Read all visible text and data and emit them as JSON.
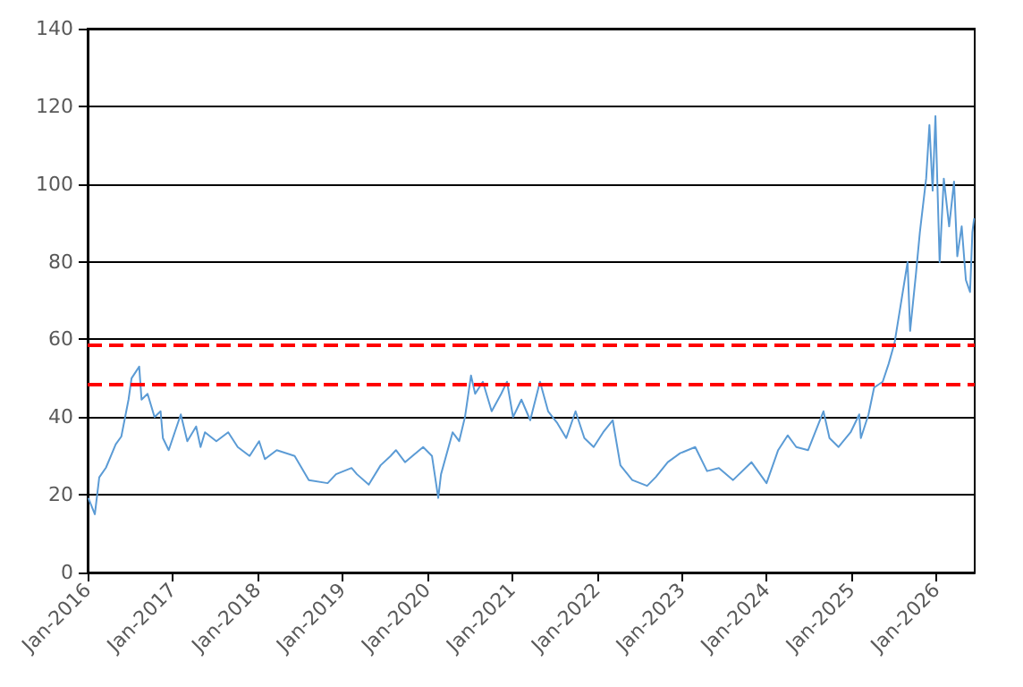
{
  "chart_data": {
    "type": "line",
    "series": [
      {
        "color": "#5b9bd5",
        "x": [
          "2016-01-05",
          "2016-02-01",
          "2016-02-20",
          "2016-03-20",
          "2016-05-01",
          "2016-05-25",
          "2016-06-25",
          "2016-07-08",
          "2016-08-10",
          "2016-08-20",
          "2016-09-15",
          "2016-10-15",
          "2016-11-10",
          "2016-11-20",
          "2016-12-15",
          "2017-02-05",
          "2017-03-05",
          "2017-04-12",
          "2017-05-01",
          "2017-05-20",
          "2017-07-08",
          "2017-08-28",
          "2017-10-08",
          "2017-11-28",
          "2018-01-08",
          "2018-02-02",
          "2018-03-25",
          "2018-06-10",
          "2018-08-10",
          "2018-10-30",
          "2018-12-05",
          "2019-02-10",
          "2019-03-05",
          "2019-04-25",
          "2019-06-15",
          "2019-07-28",
          "2019-08-20",
          "2019-09-28",
          "2019-12-15",
          "2020-01-22",
          "2020-02-18",
          "2020-03-01",
          "2020-04-20",
          "2020-05-18",
          "2020-06-12",
          "2020-07-08",
          "2020-07-26",
          "2020-08-28",
          "2020-10-05",
          "2020-11-15",
          "2020-12-10",
          "2021-01-05",
          "2021-02-10",
          "2021-03-20",
          "2021-05-01",
          "2021-06-05",
          "2021-07-15",
          "2021-08-22",
          "2021-10-01",
          "2021-11-08",
          "2021-12-18",
          "2022-01-28",
          "2022-03-10",
          "2022-04-12",
          "2022-06-02",
          "2022-08-05",
          "2022-09-12",
          "2022-11-02",
          "2022-12-25",
          "2023-02-28",
          "2023-04-20",
          "2023-06-10",
          "2023-08-10",
          "2023-10-28",
          "2024-01-01",
          "2024-02-20",
          "2024-04-01",
          "2024-05-08",
          "2024-06-28",
          "2024-09-02",
          "2024-09-28",
          "2024-11-06",
          "2024-12-28",
          "2025-02-03",
          "2025-02-10",
          "2025-03-15",
          "2025-04-08",
          "2025-05-15",
          "2025-06-10",
          "2025-07-05",
          "2025-07-28",
          "2025-08-30",
          "2025-09-10",
          "2025-10-05",
          "2025-10-22",
          "2025-11-18",
          "2025-12-02",
          "2025-12-16",
          "2025-12-28",
          "2026-01-15",
          "2026-02-02",
          "2026-02-25",
          "2026-03-18",
          "2026-04-01",
          "2026-04-20",
          "2026-05-08",
          "2026-05-26",
          "2026-06-05",
          "2026-06-12"
        ],
        "values": [
          19,
          15,
          24.5,
          27,
          33,
          35,
          44.5,
          50,
          53,
          44.5,
          46,
          40,
          41.5,
          34.6,
          31.5,
          40.7,
          33.8,
          37.6,
          32.3,
          36.1,
          33.8,
          36.1,
          32.3,
          30,
          33.8,
          29.2,
          31.5,
          30,
          23.8,
          23,
          25.3,
          26.9,
          25.3,
          22.6,
          27.6,
          30,
          31.5,
          28.4,
          32.3,
          30,
          19.2,
          25.3,
          36.1,
          33.8,
          40,
          50.7,
          46,
          49.1,
          41.5,
          46,
          49.1,
          40,
          44.5,
          39.2,
          49.1,
          41.5,
          38.4,
          34.6,
          41.5,
          34.6,
          32.3,
          36.1,
          39.2,
          27.6,
          23.8,
          22.3,
          24.6,
          28.4,
          30.7,
          32.3,
          26.1,
          26.9,
          23.8,
          28.4,
          23,
          31.5,
          35.3,
          32.3,
          31.5,
          41.5,
          34.6,
          32.3,
          36.1,
          40.7,
          34.6,
          40.7,
          47.6,
          49.1,
          53.8,
          59.1,
          67.6,
          79.9,
          62.2,
          76.8,
          87.6,
          101.4,
          115.2,
          98.3,
          117.5,
          79.9,
          101.4,
          89.1,
          100.6,
          81.4,
          89.1,
          75.3,
          72.2,
          87.6,
          91
        ]
      }
    ],
    "xlim": [
      "2016-01-01",
      "2026-06-15"
    ],
    "xticks": [
      {
        "value": "2016-01-01",
        "label": "Jan-2016"
      },
      {
        "value": "2017-01-01",
        "label": "Jan-2017"
      },
      {
        "value": "2018-01-01",
        "label": "Jan-2018"
      },
      {
        "value": "2019-01-01",
        "label": "Jan-2019"
      },
      {
        "value": "2020-01-01",
        "label": "Jan-2020"
      },
      {
        "value": "2021-01-01",
        "label": "Jan-2021"
      },
      {
        "value": "2022-01-01",
        "label": "Jan-2022"
      },
      {
        "value": "2023-01-01",
        "label": "Jan-2023"
      },
      {
        "value": "2024-01-01",
        "label": "Jan-2024"
      },
      {
        "value": "2025-01-01",
        "label": "Jan-2025"
      },
      {
        "value": "2026-01-01",
        "label": "Jan-2026"
      }
    ],
    "ylim": [
      0,
      140
    ],
    "yticks": [
      0,
      20,
      40,
      60,
      80,
      100,
      120,
      140
    ],
    "grid": "y",
    "marker": "none",
    "line_style": "solid",
    "ref_lines": [
      {
        "axis": "y",
        "value": 58.5,
        "color": "#ff0000",
        "line_style": "dashed"
      },
      {
        "axis": "y",
        "value": 48.5,
        "color": "#ff0000",
        "line_style": "dashed"
      }
    ]
  }
}
